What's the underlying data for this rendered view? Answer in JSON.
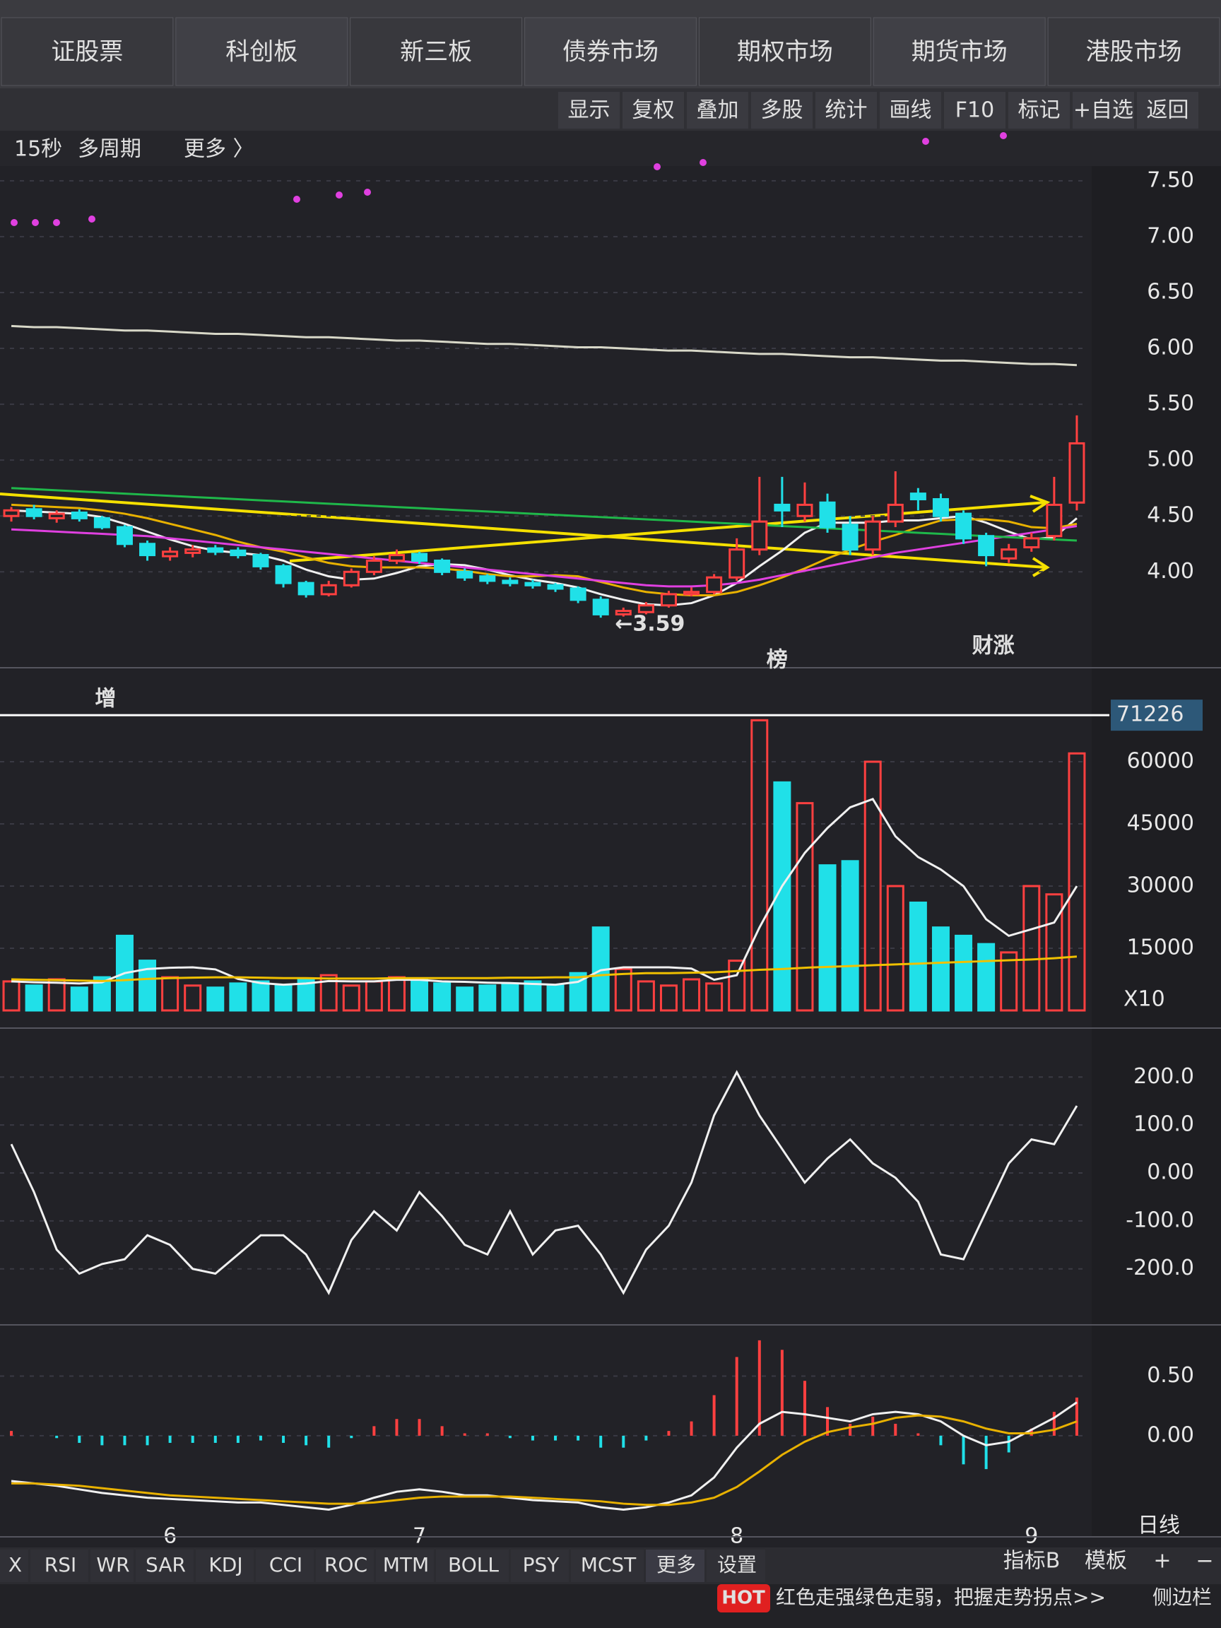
{
  "tabs": [
    "证股票",
    "科创板",
    "新三板",
    "债券市场",
    "期权市场",
    "期货市场",
    "港股市场"
  ],
  "toolbar": [
    "显示",
    "复权",
    "叠加",
    "多股",
    "统计",
    "画线",
    "F10",
    "标记",
    "+自选",
    "返回"
  ],
  "periods": [
    "15秒",
    "多周期",
    "更多 〉"
  ],
  "indicator_tabs": [
    "X",
    "RSI",
    "WR",
    "SAR",
    "KDJ",
    "CCI",
    "ROC",
    "MTM",
    "BOLL",
    "PSY",
    "MCST",
    "更多",
    "设置"
  ],
  "right_tabs": [
    "指标B",
    "模板",
    "+",
    "−"
  ],
  "period_label": "日线",
  "hot": {
    "badge": "HOT",
    "text": "红色走强绿色走弱，把握走势拐点>>"
  },
  "sidebar": "侧边栏",
  "chart_data": [
    {
      "type": "candlestick",
      "categories": [
        null,
        null,
        null,
        null,
        null,
        null,
        null,
        "6",
        null,
        null,
        null,
        null,
        null,
        null,
        null,
        null,
        null,
        null,
        "7",
        null,
        null,
        null,
        null,
        null,
        null,
        null,
        null,
        null,
        null,
        null,
        null,
        null,
        "8",
        null,
        null,
        null,
        null,
        null,
        null,
        null,
        null,
        null,
        null,
        null,
        null,
        "9",
        null,
        null
      ],
      "open": [
        4.5,
        4.56,
        4.48,
        4.53,
        4.48,
        4.4,
        4.25,
        4.14,
        4.17,
        4.21,
        4.19,
        4.15,
        4.05,
        3.9,
        3.8,
        3.88,
        4.0,
        4.1,
        4.16,
        4.1,
        4.0,
        3.96,
        3.92,
        3.9,
        3.88,
        3.85,
        3.75,
        3.62,
        3.64,
        3.7,
        3.8,
        3.82,
        3.95,
        4.2,
        4.6,
        4.5,
        4.62,
        4.42,
        4.2,
        4.45,
        4.7,
        4.65,
        4.52,
        4.32,
        4.12,
        4.22,
        4.32,
        4.62
      ],
      "high": [
        4.58,
        4.6,
        4.55,
        4.56,
        4.5,
        4.42,
        4.28,
        4.22,
        4.24,
        4.24,
        4.22,
        4.17,
        4.07,
        3.92,
        3.92,
        4.03,
        4.14,
        4.2,
        4.18,
        4.12,
        4.03,
        3.98,
        3.95,
        3.93,
        3.9,
        3.87,
        3.78,
        3.68,
        3.73,
        3.83,
        3.86,
        3.98,
        4.3,
        4.85,
        4.85,
        4.8,
        4.7,
        4.5,
        4.5,
        4.9,
        4.75,
        4.7,
        4.55,
        4.35,
        4.25,
        4.35,
        4.85,
        5.4
      ],
      "low": [
        4.45,
        4.47,
        4.44,
        4.45,
        4.38,
        4.22,
        4.1,
        4.1,
        4.13,
        4.15,
        4.12,
        4.02,
        3.86,
        3.77,
        3.78,
        3.86,
        3.97,
        4.07,
        4.07,
        3.97,
        3.92,
        3.89,
        3.87,
        3.85,
        3.82,
        3.72,
        3.59,
        3.6,
        3.62,
        3.68,
        3.78,
        3.8,
        3.92,
        4.15,
        4.4,
        4.45,
        4.35,
        4.15,
        4.15,
        4.4,
        4.55,
        4.45,
        4.25,
        4.05,
        4.08,
        4.18,
        4.28,
        4.55
      ],
      "close": [
        4.55,
        4.5,
        4.52,
        4.48,
        4.4,
        4.25,
        4.15,
        4.18,
        4.2,
        4.18,
        4.15,
        4.05,
        3.9,
        3.8,
        3.88,
        4.0,
        4.1,
        4.15,
        4.1,
        4.0,
        3.95,
        3.92,
        3.9,
        3.88,
        3.85,
        3.75,
        3.62,
        3.65,
        3.7,
        3.8,
        3.82,
        3.95,
        4.2,
        4.45,
        4.55,
        4.6,
        4.4,
        4.2,
        4.45,
        4.6,
        4.65,
        4.5,
        4.3,
        4.15,
        4.2,
        4.3,
        4.6,
        5.15
      ],
      "series": [
        {
          "color": "#f0f0f0",
          "values": [
            4.55,
            4.54,
            4.53,
            4.52,
            4.49,
            4.43,
            4.36,
            4.29,
            4.23,
            4.19,
            4.17,
            4.15,
            4.1,
            4.02,
            3.96,
            3.93,
            3.94,
            3.99,
            4.05,
            4.07,
            4.06,
            4.02,
            3.97,
            3.93,
            3.9,
            3.86,
            3.8,
            3.75,
            3.71,
            3.7,
            3.72,
            3.79,
            3.9,
            4.05,
            4.19,
            4.35,
            4.44,
            4.44,
            4.44,
            4.46,
            4.46,
            4.48,
            4.5,
            4.44,
            4.36,
            4.29,
            4.31,
            4.48
          ]
        },
        {
          "color": "#e8b100",
          "values": [
            4.6,
            4.59,
            4.58,
            4.57,
            4.55,
            4.52,
            4.48,
            4.43,
            4.38,
            4.33,
            4.27,
            4.22,
            4.18,
            4.13,
            4.08,
            4.05,
            4.04,
            4.04,
            4.04,
            4.03,
            4.01,
            3.98,
            3.96,
            3.96,
            3.97,
            3.96,
            3.91,
            3.86,
            3.82,
            3.8,
            3.79,
            3.79,
            3.82,
            3.88,
            3.95,
            4.03,
            4.12,
            4.2,
            4.27,
            4.33,
            4.4,
            4.46,
            4.47,
            4.47,
            4.45,
            4.4,
            4.39,
            4.43
          ]
        },
        {
          "color": "#e040e0",
          "values": [
            4.38,
            4.37,
            4.36,
            4.35,
            4.34,
            4.33,
            4.32,
            4.3,
            4.28,
            4.26,
            4.24,
            4.22,
            4.2,
            4.18,
            4.16,
            4.14,
            4.12,
            4.1,
            4.08,
            4.06,
            4.04,
            4.02,
            4.0,
            3.98,
            3.96,
            3.94,
            3.92,
            3.9,
            3.88,
            3.87,
            3.87,
            3.88,
            3.9,
            3.93,
            3.97,
            4.01,
            4.05,
            4.09,
            4.13,
            4.17,
            4.2,
            4.23,
            4.26,
            4.29,
            4.32,
            4.35,
            4.38,
            4.41
          ]
        },
        {
          "color": "#1fb84a",
          "values": [
            4.75,
            4.74,
            4.73,
            4.72,
            4.71,
            4.7,
            4.69,
            4.68,
            4.67,
            4.66,
            4.65,
            4.64,
            4.63,
            4.62,
            4.61,
            4.6,
            4.59,
            4.58,
            4.57,
            4.56,
            4.55,
            4.54,
            4.53,
            4.52,
            4.51,
            4.5,
            4.49,
            4.48,
            4.47,
            4.46,
            4.45,
            4.44,
            4.43,
            4.42,
            4.41,
            4.4,
            4.39,
            4.38,
            4.37,
            4.36,
            4.35,
            4.34,
            4.33,
            4.32,
            4.31,
            4.3,
            4.29,
            4.28
          ]
        },
        {
          "color": "#d8d8c8",
          "values": [
            6.2,
            6.19,
            6.19,
            6.18,
            6.17,
            6.16,
            6.16,
            6.15,
            6.14,
            6.13,
            6.13,
            6.12,
            6.11,
            6.1,
            6.1,
            6.09,
            6.08,
            6.07,
            6.07,
            6.06,
            6.05,
            6.04,
            6.04,
            6.03,
            6.02,
            6.01,
            6.01,
            6.0,
            5.99,
            5.98,
            5.98,
            5.97,
            5.96,
            5.95,
            5.95,
            5.94,
            5.93,
            5.92,
            5.92,
            5.91,
            5.9,
            5.89,
            5.89,
            5.88,
            5.87,
            5.86,
            5.86,
            5.85
          ]
        }
      ],
      "up_color": "#ff4040",
      "down_color": "#20e0e8",
      "ylim": [
        3.3,
        7.6
      ],
      "yticks": [
        {
          "value": 4.0,
          "label": "4.00"
        },
        {
          "value": 4.5,
          "label": "4.50"
        },
        {
          "value": 5.0,
          "label": "5.00"
        },
        {
          "value": 5.5,
          "label": "5.50"
        },
        {
          "value": 6.0,
          "label": "6.00"
        },
        {
          "value": 6.5,
          "label": "6.50"
        },
        {
          "value": 7.0,
          "label": "7.00"
        },
        {
          "value": 7.5,
          "label": "7.50"
        }
      ],
      "grid": true,
      "annotations": [
        "←3.59",
        "榜",
        "财涨",
        "增"
      ]
    },
    {
      "type": "bar",
      "values": [
        7000,
        6000,
        7500,
        5500,
        8000,
        18000,
        12000,
        8000,
        6000,
        5500,
        6500,
        7000,
        6000,
        7500,
        8500,
        6000,
        7000,
        8000,
        7500,
        6500,
        5500,
        6000,
        6500,
        7000,
        6000,
        9000,
        20000,
        10000,
        7000,
        6000,
        7500,
        6500,
        12000,
        70000,
        55000,
        50000,
        35000,
        36000,
        60000,
        30000,
        26000,
        20000,
        18000,
        16000,
        14000,
        30000,
        28000,
        62000
      ],
      "series": [
        {
          "color": "#f0f0f0",
          "values": [
            7000,
            6800,
            6700,
            6500,
            6800,
            9000,
            10000,
            10300,
            10400,
            9900,
            7600,
            6600,
            6200,
            6500,
            7100,
            7000,
            7000,
            7400,
            7400,
            7000,
            6900,
            6700,
            6600,
            6400,
            6200,
            6900,
            9700,
            10400,
            10400,
            10400,
            10100,
            7400,
            8500,
            20000,
            30000,
            38000,
            44000,
            49000,
            51000,
            42000,
            37000,
            34000,
            30000,
            22000,
            18000,
            19600,
            21200,
            30000
          ]
        },
        {
          "color": "#f0c000",
          "values": [
            7500,
            7400,
            7300,
            7200,
            7100,
            7300,
            7600,
            7800,
            7900,
            8000,
            8000,
            7900,
            7800,
            7800,
            7700,
            7700,
            7700,
            7800,
            7800,
            7800,
            7800,
            7800,
            7900,
            7900,
            8000,
            8000,
            8500,
            8800,
            9000,
            9000,
            9100,
            9200,
            9500,
            9800,
            10000,
            10300,
            10500,
            10700,
            10900,
            11100,
            11300,
            11500,
            11700,
            11900,
            12100,
            12300,
            12600,
            13000
          ]
        }
      ],
      "cursor": 71226,
      "unit_label": "X10",
      "ylim": [
        0,
        75000
      ],
      "yticks": [
        15000,
        30000,
        45000,
        60000
      ],
      "grid": true
    },
    {
      "type": "line",
      "series": [
        {
          "color": "#f0f0f0",
          "values": [
            60,
            -40,
            -160,
            -210,
            -190,
            -180,
            -130,
            -150,
            -200,
            -210,
            -170,
            -130,
            -130,
            -170,
            -250,
            -140,
            -80,
            -120,
            -40,
            -90,
            -150,
            -170,
            -80,
            -170,
            -120,
            -110,
            -170,
            -250,
            -160,
            -110,
            -20,
            120,
            210,
            120,
            50,
            -20,
            30,
            70,
            20,
            -10,
            -60,
            -170,
            -180,
            -80,
            20,
            70,
            60,
            140
          ]
        }
      ],
      "ylim": [
        -280,
        280
      ],
      "yticks": [
        {
          "value": -200,
          "label": "-200.0"
        },
        {
          "value": -100,
          "label": "-100.0"
        },
        {
          "value": 0,
          "label": "0.00"
        },
        {
          "value": 100,
          "label": "100.0"
        },
        {
          "value": 200,
          "label": "200.0"
        }
      ],
      "grid": true
    },
    {
      "type": "macd",
      "histogram": [
        0.04,
        0,
        -0.02,
        -0.06,
        -0.08,
        -0.08,
        -0.08,
        -0.06,
        -0.06,
        -0.06,
        -0.06,
        -0.04,
        -0.06,
        -0.08,
        -0.1,
        -0.02,
        0.08,
        0.14,
        0.14,
        0.08,
        0.02,
        0.02,
        -0.02,
        -0.04,
        -0.04,
        -0.04,
        -0.1,
        -0.1,
        -0.04,
        0.04,
        0.12,
        0.34,
        0.66,
        0.8,
        0.72,
        0.46,
        0.24,
        0.1,
        0.16,
        0.1,
        0.02,
        -0.08,
        -0.24,
        -0.28,
        -0.14,
        0.06,
        0.2,
        0.32
      ],
      "series": [
        {
          "color": "#f0f0f0",
          "values": [
            -0.38,
            -0.4,
            -0.42,
            -0.45,
            -0.48,
            -0.5,
            -0.52,
            -0.53,
            -0.54,
            -0.55,
            -0.56,
            -0.56,
            -0.58,
            -0.6,
            -0.62,
            -0.58,
            -0.52,
            -0.47,
            -0.45,
            -0.47,
            -0.5,
            -0.5,
            -0.52,
            -0.54,
            -0.55,
            -0.56,
            -0.6,
            -0.62,
            -0.6,
            -0.56,
            -0.5,
            -0.35,
            -0.1,
            0.1,
            0.2,
            0.18,
            0.15,
            0.12,
            0.18,
            0.2,
            0.18,
            0.12,
            0.0,
            -0.08,
            -0.05,
            0.05,
            0.15,
            0.28
          ]
        },
        {
          "color": "#e8b100",
          "values": [
            -0.4,
            -0.4,
            -0.41,
            -0.42,
            -0.44,
            -0.46,
            -0.48,
            -0.5,
            -0.51,
            -0.52,
            -0.53,
            -0.54,
            -0.55,
            -0.56,
            -0.57,
            -0.57,
            -0.56,
            -0.54,
            -0.52,
            -0.51,
            -0.51,
            -0.51,
            -0.51,
            -0.52,
            -0.53,
            -0.54,
            -0.55,
            -0.57,
            -0.58,
            -0.58,
            -0.56,
            -0.52,
            -0.43,
            -0.3,
            -0.16,
            -0.05,
            0.03,
            0.07,
            0.1,
            0.15,
            0.17,
            0.16,
            0.12,
            0.06,
            0.02,
            0.02,
            0.05,
            0.12
          ]
        }
      ],
      "up_color": "#ff4040",
      "down_color": "#20e0e8",
      "ylim": [
        -0.7,
        0.9
      ],
      "yticks": [
        {
          "value": 0,
          "label": "0.00"
        },
        {
          "value": 0.5,
          "label": "0.50"
        }
      ],
      "grid": true
    }
  ]
}
